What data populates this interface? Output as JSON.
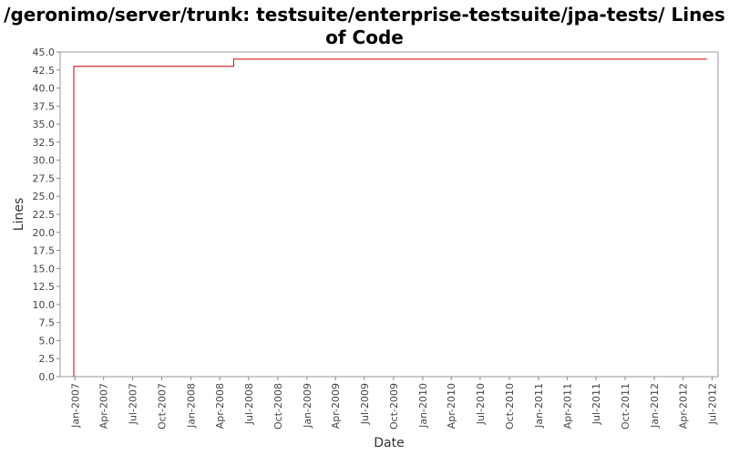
{
  "chart_data": {
    "type": "line",
    "title": "/geronimo/server/trunk: testsuite/enterprise-testsuite/jpa-tests/ Lines of Code",
    "xlabel": "Date",
    "ylabel": "Lines",
    "ylim": [
      0,
      45
    ],
    "yticks": [
      "0.0",
      "2.5",
      "5.0",
      "7.5",
      "10.0",
      "12.5",
      "15.0",
      "17.5",
      "20.0",
      "22.5",
      "25.0",
      "27.5",
      "30.0",
      "32.5",
      "35.0",
      "37.5",
      "40.0",
      "42.5",
      "45.0"
    ],
    "xticks": [
      {
        "label": "Jan-2007",
        "date": "2007-01-01"
      },
      {
        "label": "Apr-2007",
        "date": "2007-04-01"
      },
      {
        "label": "Jul-2007",
        "date": "2007-07-01"
      },
      {
        "label": "Oct-2007",
        "date": "2007-10-01"
      },
      {
        "label": "Jan-2008",
        "date": "2008-01-01"
      },
      {
        "label": "Apr-2008",
        "date": "2008-04-01"
      },
      {
        "label": "Jul-2008",
        "date": "2008-07-01"
      },
      {
        "label": "Oct-2008",
        "date": "2008-10-01"
      },
      {
        "label": "Jan-2009",
        "date": "2009-01-01"
      },
      {
        "label": "Apr-2009",
        "date": "2009-04-01"
      },
      {
        "label": "Jul-2009",
        "date": "2009-07-01"
      },
      {
        "label": "Oct-2009",
        "date": "2009-10-01"
      },
      {
        "label": "Jan-2010",
        "date": "2010-01-01"
      },
      {
        "label": "Apr-2010",
        "date": "2010-04-01"
      },
      {
        "label": "Jul-2010",
        "date": "2010-07-01"
      },
      {
        "label": "Oct-2010",
        "date": "2010-10-01"
      },
      {
        "label": "Jan-2011",
        "date": "2011-01-01"
      },
      {
        "label": "Apr-2011",
        "date": "2011-04-01"
      },
      {
        "label": "Jul-2011",
        "date": "2011-07-01"
      },
      {
        "label": "Oct-2011",
        "date": "2011-10-01"
      },
      {
        "label": "Jan-2012",
        "date": "2012-01-01"
      },
      {
        "label": "Apr-2012",
        "date": "2012-04-01"
      },
      {
        "label": "Jul-2012",
        "date": "2012-07-01"
      }
    ],
    "xlim": [
      "2006-11-15",
      "2012-07-20"
    ],
    "grid": false,
    "series": [
      {
        "color": "#cc0000",
        "step": true,
        "points": [
          {
            "x": "2006-12-28",
            "y": 0
          },
          {
            "x": "2006-12-28",
            "y": 43
          },
          {
            "x": "2008-05-15",
            "y": 43
          },
          {
            "x": "2008-05-15",
            "y": 44
          },
          {
            "x": "2012-06-15",
            "y": 44
          }
        ]
      }
    ]
  }
}
